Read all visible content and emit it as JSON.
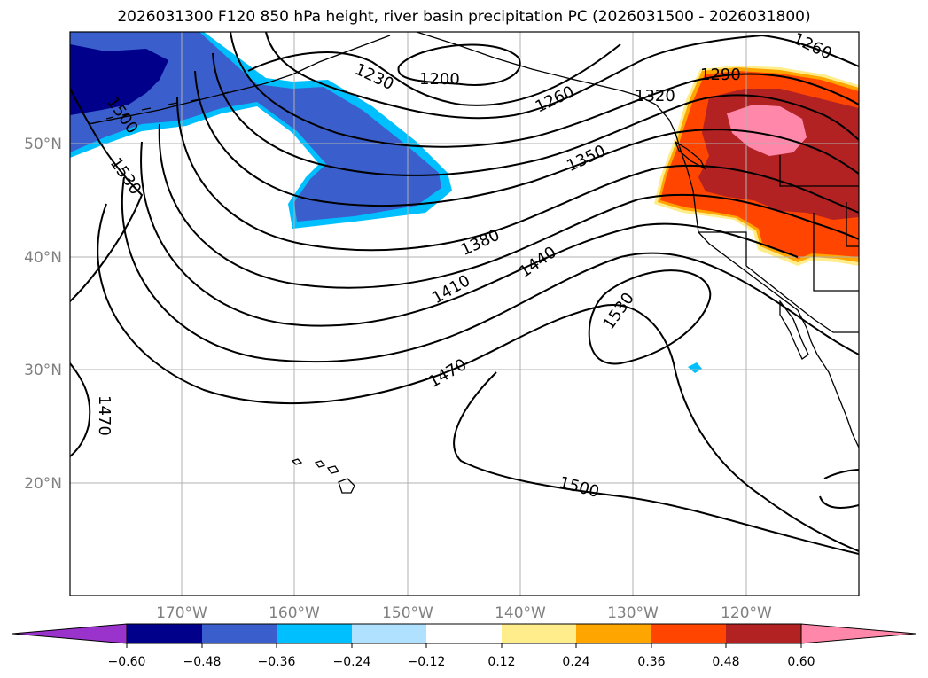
{
  "title": "2026031300 F120 850 hPa height, river basin precipitation PC (2026031500 - 2026031800)",
  "lat_labels": [
    "50°N",
    "40°N",
    "30°N",
    "20°N"
  ],
  "lon_labels": [
    "170°W",
    "160°W",
    "150°W",
    "140°W",
    "130°W",
    "120°W"
  ],
  "contour_labels": [
    "1200",
    "1230",
    "1260",
    "1290",
    "1320",
    "1350",
    "1380",
    "1410",
    "1440",
    "1470",
    "1500",
    "1530",
    "1530",
    "1260",
    "1470",
    "1500"
  ],
  "colorbar": {
    "ticks": [
      "−0.60",
      "−0.48",
      "−0.36",
      "−0.24",
      "−0.12",
      "0.12",
      "0.24",
      "0.36",
      "0.48",
      "0.60"
    ],
    "colors": [
      "#9933cc",
      "#00008b",
      "#3a5fcd",
      "#00bfff",
      "#b0e2ff",
      "#ffffff",
      "#ffec8b",
      "#ffa500",
      "#ff4500",
      "#b22222",
      "#ff88aa"
    ]
  },
  "colors": {
    "contour": "#000000",
    "grid": "#b0b0b0",
    "axis_label": "#808080"
  }
}
